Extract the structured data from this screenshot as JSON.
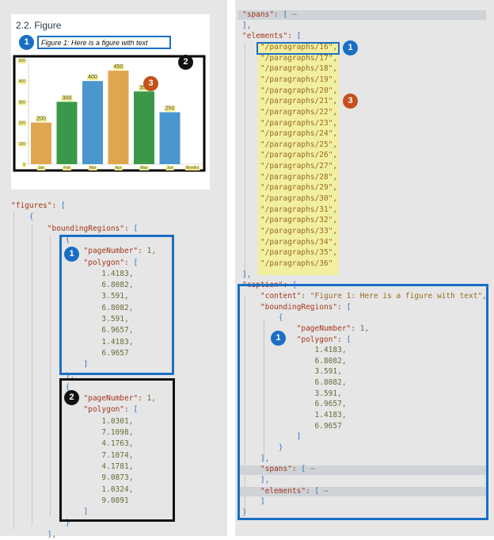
{
  "document": {
    "heading": "2.2. Figure",
    "caption": "Figure 1: Here is a figure with text",
    "chart": {
      "type": "bar",
      "categories": [
        "Jan",
        "Feb",
        "Mar",
        "Apr",
        "May",
        "Jun"
      ],
      "values": [
        200,
        300,
        400,
        450,
        350,
        250
      ],
      "colors": [
        "#e0a54f",
        "#3b9849",
        "#4a97cf",
        "#e0a54f",
        "#3b9849",
        "#4a97cf"
      ],
      "ylim": [
        0,
        500
      ],
      "yticks": [
        0,
        100,
        200,
        300,
        400,
        500
      ],
      "x_label": "Months"
    }
  },
  "badges": [
    {
      "label": "1",
      "color": "#1a6fc4"
    },
    {
      "label": "2",
      "color": "#111111"
    },
    {
      "label": "3",
      "color": "#c4501c"
    },
    {
      "label": "1",
      "color": "#1a6fc4"
    },
    {
      "label": "2",
      "color": "#111111"
    },
    {
      "label": "1",
      "color": "#1a6fc4"
    },
    {
      "label": "3",
      "color": "#c4501c"
    },
    {
      "label": "1",
      "color": "#1a6fc4"
    }
  ],
  "left_code": [
    "\"figures\": [",
    "    {",
    "        \"boundingRegions\": [",
    "            {",
    "                \"pageNumber\": 1,",
    "                \"polygon\": [",
    "                    1.4183,",
    "                    6.8082,",
    "                    3.591,",
    "                    6.8082,",
    "                    3.591,",
    "                    6.9657,",
    "                    1.4183,",
    "                    6.9657",
    "                ]",
    "            },",
    "            {",
    "                \"pageNumber\": 1,",
    "                \"polygon\": [",
    "                    1.0301,",
    "                    7.1098,",
    "                    4.1763,",
    "                    7.1074,",
    "                    4.1781,",
    "                    9.0873,",
    "                    1.0324,",
    "                    9.0891",
    "                ]",
    "            }",
    "        ],"
  ],
  "right_code": [
    "\"spans\": [ ⋯",
    "],",
    "\"elements\": [",
    "    \"/paragraphs/16\",",
    "    \"/paragraphs/17\",",
    "    \"/paragraphs/18\",",
    "    \"/paragraphs/19\",",
    "    \"/paragraphs/20\",",
    "    \"/paragraphs/21\",",
    "    \"/paragraphs/22\",",
    "    \"/paragraphs/23\",",
    "    \"/paragraphs/24\",",
    "    \"/paragraphs/25\",",
    "    \"/paragraphs/26\",",
    "    \"/paragraphs/27\",",
    "    \"/paragraphs/28\",",
    "    \"/paragraphs/29\",",
    "    \"/paragraphs/30\",",
    "    \"/paragraphs/31\",",
    "    \"/paragraphs/32\",",
    "    \"/paragraphs/33\",",
    "    \"/paragraphs/34\",",
    "    \"/paragraphs/35\",",
    "    \"/paragraphs/36\"",
    "],",
    "\"caption\": {",
    "    \"content\": \"Figure 1: Here is a figure with text\",",
    "    \"boundingRegions\": [",
    "        {",
    "            \"pageNumber\": 1,",
    "            \"polygon\": [",
    "                1.4183,",
    "                6.8082,",
    "                3.591,",
    "                6.8082,",
    "                3.591,",
    "                6.9657,",
    "                1.4183,",
    "                6.9657",
    "            ]",
    "        }",
    "    ],",
    "    \"spans\": [ ⋯",
    "    ],",
    "    \"elements\": [ ⋯",
    "    ]",
    "}"
  ]
}
